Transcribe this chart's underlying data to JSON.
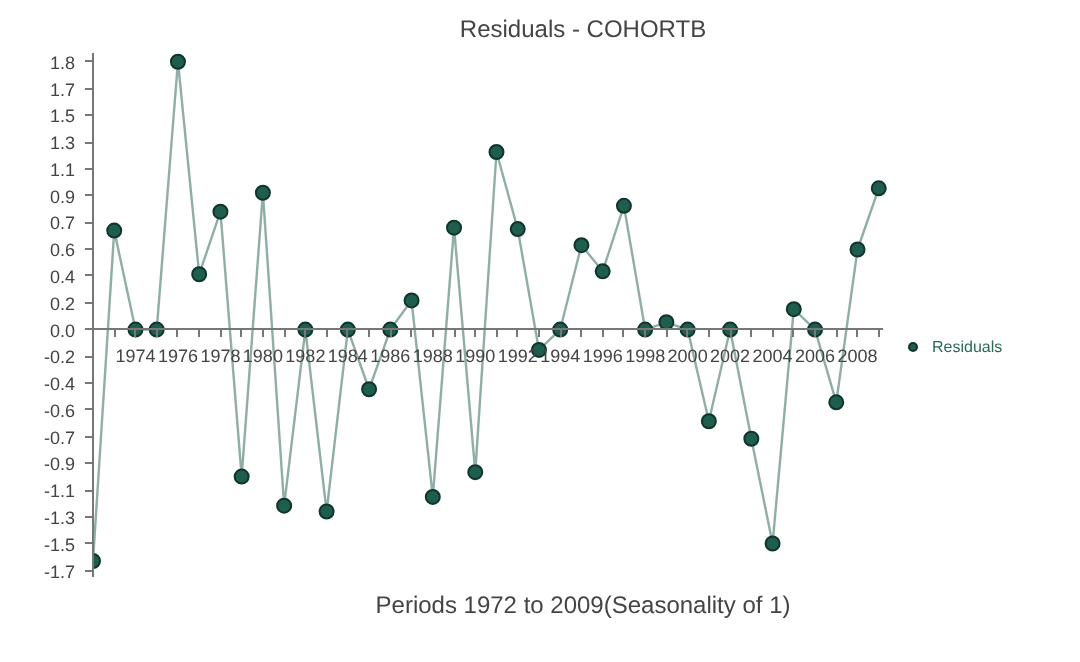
{
  "chart_data": {
    "type": "line",
    "title": "Residuals - COHORTB",
    "xlabel": "Periods 1972 to 2009(Seasonality of 1)",
    "x": [
      1972,
      1973,
      1974,
      1975,
      1976,
      1977,
      1978,
      1979,
      1980,
      1981,
      1982,
      1983,
      1984,
      1985,
      1986,
      1987,
      1988,
      1989,
      1990,
      1991,
      1992,
      1993,
      1994,
      1995,
      1996,
      1997,
      1998,
      1999,
      2000,
      2001,
      2002,
      2003,
      2004,
      2005,
      2006,
      2007,
      2008,
      2009
    ],
    "series": [
      {
        "name": "Residuals",
        "color": "#1e5e4e",
        "values": [
          -1.59,
          0.68,
          0,
          0,
          1.84,
          0.38,
          0.81,
          -1.01,
          0.94,
          -1.21,
          0,
          -1.25,
          0,
          -0.41,
          0,
          0.2,
          -1.15,
          0.7,
          -0.98,
          1.22,
          0.69,
          -0.14,
          0,
          0.58,
          0.4,
          0.85,
          0,
          0.05,
          0,
          -0.63,
          0,
          -0.75,
          -1.47,
          0.14,
          0,
          -0.5,
          0.55,
          0.97
        ]
      }
    ],
    "xlim": [
      1972,
      2009.2
    ],
    "ylim": [
      -1.7,
      1.9
    ],
    "xticks": [
      {
        "value": 1973,
        "label": null
      },
      1974,
      {
        "value": 1975,
        "label": null
      },
      1976,
      {
        "value": 1977,
        "label": null
      },
      1978,
      {
        "value": 1979,
        "label": null
      },
      1980,
      {
        "value": 1981,
        "label": null
      },
      1982,
      {
        "value": 1983,
        "label": null
      },
      1984,
      {
        "value": 1985,
        "label": null
      },
      1986,
      {
        "value": 1987,
        "label": null
      },
      1988,
      {
        "value": 1989,
        "label": null
      },
      1990,
      {
        "value": 1991,
        "label": null
      },
      1992,
      {
        "value": 1993,
        "label": null
      },
      1994,
      {
        "value": 1995,
        "label": null
      },
      1996,
      {
        "value": 1997,
        "label": null
      },
      1998,
      {
        "value": 1999,
        "label": null
      },
      2000,
      {
        "value": 2001,
        "label": null
      },
      2002,
      {
        "value": 2003,
        "label": null
      },
      2004,
      {
        "value": 2005,
        "label": null
      },
      2006,
      {
        "value": 2007,
        "label": null
      },
      2008,
      {
        "value": 2009,
        "label": null
      }
    ],
    "yticks": [
      {
        "value": -1.656,
        "label": "-1.7"
      },
      {
        "value": -1.472,
        "label": "-1.5"
      },
      {
        "value": -1.288,
        "label": "-1.3"
      },
      {
        "value": -1.104,
        "label": "-1.1"
      },
      {
        "value": -0.92,
        "label": "-0.9"
      },
      {
        "value": -0.736,
        "label": "-0.7"
      },
      {
        "value": -0.552,
        "label": "-0.6"
      },
      {
        "value": -0.368,
        "label": "-0.4"
      },
      {
        "value": -0.184,
        "label": "-0.2"
      },
      {
        "value": 0,
        "label": "0.0"
      },
      {
        "value": 0.184,
        "label": "0.2"
      },
      {
        "value": 0.368,
        "label": "0.4"
      },
      {
        "value": 0.552,
        "label": "0.6"
      },
      {
        "value": 0.736,
        "label": "0.7"
      },
      {
        "value": 0.92,
        "label": "0.9"
      },
      {
        "value": 1.104,
        "label": "1.1"
      },
      {
        "value": 1.288,
        "label": "1.3"
      },
      {
        "value": 1.472,
        "label": "1.5"
      },
      {
        "value": 1.656,
        "label": "1.7"
      },
      {
        "value": 1.84,
        "label": "1.8"
      }
    ],
    "grid": false,
    "legend": "right",
    "marker": "circle",
    "line_style": "solid"
  }
}
